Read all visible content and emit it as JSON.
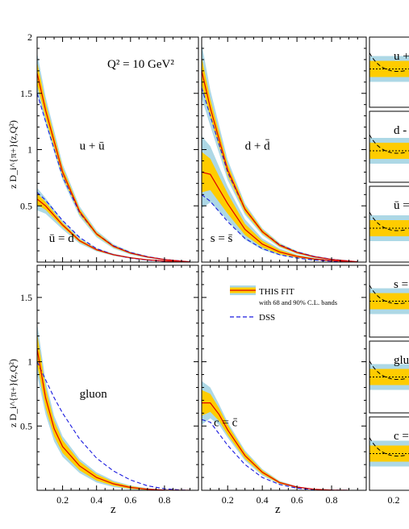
{
  "figure": {
    "annotation": "Q² = 10 GeV²",
    "ylabel_top": "z D_i^{π+}(z,Q²)",
    "ylabel_bottom": "z D_i^{π+}(z,Q²)",
    "xlabel": "z",
    "legend": {
      "fit_label": "THIS FIT",
      "fit_sub": "with 68 and 90% C.L. bands",
      "dss_label": "DSS"
    }
  },
  "colors": {
    "band90": "#add8e6",
    "band68": "#ffcc00",
    "fit": "#dd0000",
    "dss": "#1a1adf",
    "ratio_ref": "#000000"
  },
  "chart_data": [
    {
      "type": "line",
      "panel": "top-left",
      "xlim": [
        0.05,
        1.0
      ],
      "ylim": [
        0,
        2.0
      ],
      "xticks": [],
      "yticks": [
        0.5,
        1,
        1.5,
        2
      ],
      "ytick_labels": [
        "0.5",
        "1",
        "1.5",
        "2"
      ],
      "series": [
        {
          "name": "u + ū",
          "label_x": 0.3,
          "label_y": 1.0,
          "x": [
            0.05,
            0.1,
            0.2,
            0.3,
            0.4,
            0.5,
            0.6,
            0.7,
            0.8,
            0.9,
            0.95
          ],
          "fit": [
            1.68,
            1.35,
            0.8,
            0.45,
            0.25,
            0.14,
            0.08,
            0.045,
            0.022,
            0.008,
            0.003
          ],
          "b68": [
            0.1,
            0.07,
            0.04,
            0.025,
            0.015,
            0.01,
            0.007,
            0.005,
            0.003,
            0.002,
            0.001
          ],
          "b90": [
            0.18,
            0.12,
            0.07,
            0.045,
            0.03,
            0.02,
            0.013,
            0.009,
            0.006,
            0.003,
            0.002
          ],
          "dss": [
            1.5,
            1.25,
            0.76,
            0.44,
            0.25,
            0.145,
            0.085,
            0.048,
            0.024,
            0.009,
            0.003
          ]
        },
        {
          "name": "ū = d",
          "label_x": 0.12,
          "label_y": 0.18,
          "x": [
            0.05,
            0.1,
            0.2,
            0.3,
            0.4,
            0.5,
            0.6,
            0.7,
            0.8,
            0.9,
            0.95
          ],
          "fit": [
            0.56,
            0.5,
            0.33,
            0.19,
            0.11,
            0.065,
            0.038,
            0.02,
            0.01,
            0.004,
            0.001
          ],
          "b68": [
            0.05,
            0.035,
            0.02,
            0.013,
            0.008,
            0.005,
            0.004,
            0.003,
            0.002,
            0.001,
            0.001
          ],
          "b90": [
            0.1,
            0.07,
            0.04,
            0.025,
            0.015,
            0.01,
            0.007,
            0.005,
            0.003,
            0.002,
            0.001
          ],
          "dss": [
            0.62,
            0.55,
            0.37,
            0.22,
            0.12,
            0.065,
            0.036,
            0.018,
            0.008,
            0.003,
            0.001
          ]
        }
      ]
    },
    {
      "type": "line",
      "panel": "top-middle",
      "xlim": [
        0.05,
        1.0
      ],
      "ylim": [
        0,
        2.0
      ],
      "xticks": [],
      "yticks": [],
      "series": [
        {
          "name": "d + d̄",
          "label_x": 0.3,
          "label_y": 1.0,
          "x": [
            0.05,
            0.1,
            0.2,
            0.3,
            0.4,
            0.5,
            0.6,
            0.7,
            0.8,
            0.9,
            0.95
          ],
          "fit": [
            1.7,
            1.37,
            0.82,
            0.47,
            0.27,
            0.15,
            0.085,
            0.047,
            0.024,
            0.009,
            0.003
          ],
          "b68": [
            0.12,
            0.08,
            0.05,
            0.03,
            0.018,
            0.012,
            0.008,
            0.005,
            0.003,
            0.002,
            0.001
          ],
          "b90": [
            0.24,
            0.16,
            0.09,
            0.05,
            0.03,
            0.02,
            0.013,
            0.009,
            0.006,
            0.003,
            0.002
          ],
          "dss": [
            1.55,
            1.3,
            0.8,
            0.47,
            0.27,
            0.155,
            0.09,
            0.05,
            0.025,
            0.009,
            0.003
          ]
        },
        {
          "name": "s = s̄",
          "label_x": 0.1,
          "label_y": 0.18,
          "x": [
            0.05,
            0.1,
            0.2,
            0.3,
            0.4,
            0.5,
            0.6,
            0.7,
            0.8,
            0.9,
            0.95
          ],
          "fit": [
            0.8,
            0.78,
            0.52,
            0.29,
            0.16,
            0.09,
            0.05,
            0.027,
            0.013,
            0.005,
            0.002
          ],
          "b68": [
            0.18,
            0.14,
            0.09,
            0.05,
            0.03,
            0.018,
            0.01,
            0.006,
            0.004,
            0.002,
            0.001
          ],
          "b90": [
            0.32,
            0.25,
            0.15,
            0.09,
            0.05,
            0.03,
            0.017,
            0.01,
            0.006,
            0.003,
            0.001
          ],
          "dss": [
            0.6,
            0.54,
            0.36,
            0.21,
            0.12,
            0.065,
            0.036,
            0.018,
            0.008,
            0.003,
            0.001
          ]
        }
      ]
    },
    {
      "type": "line",
      "panel": "bottom-left",
      "xlim": [
        0.05,
        1.0
      ],
      "ylim": [
        0,
        1.75
      ],
      "xticks": [
        0.2,
        0.4,
        0.6,
        0.8
      ],
      "xtick_labels": [
        "0.2",
        "0.4",
        "0.6",
        "0.8"
      ],
      "yticks": [
        0.5,
        1,
        1.5
      ],
      "ytick_labels": [
        "0.5",
        "1",
        "1.5"
      ],
      "series": [
        {
          "name": "gluon",
          "label_x": 0.3,
          "label_y": 0.72,
          "x": [
            0.05,
            0.1,
            0.15,
            0.2,
            0.3,
            0.4,
            0.5,
            0.6,
            0.7,
            0.8,
            0.9,
            0.95
          ],
          "fit": [
            1.1,
            0.72,
            0.48,
            0.34,
            0.19,
            0.1,
            0.05,
            0.022,
            0.008,
            0.002,
            0.0,
            0.0
          ],
          "b68": [
            0.12,
            0.08,
            0.06,
            0.05,
            0.035,
            0.025,
            0.015,
            0.01,
            0.005,
            0.002,
            0.001,
            0.0
          ],
          "b90": [
            0.2,
            0.13,
            0.1,
            0.08,
            0.055,
            0.04,
            0.025,
            0.015,
            0.008,
            0.003,
            0.001,
            0.0
          ],
          "dss": [
            1.0,
            0.86,
            0.72,
            0.6,
            0.4,
            0.25,
            0.15,
            0.08,
            0.035,
            0.012,
            0.002,
            0.0
          ]
        }
      ]
    },
    {
      "type": "line",
      "panel": "bottom-middle",
      "xlim": [
        0.05,
        1.0
      ],
      "ylim": [
        0,
        1.75
      ],
      "xticks": [
        0.2,
        0.4,
        0.6,
        0.8
      ],
      "xtick_labels": [
        "0.2",
        "0.4",
        "0.6",
        "0.8"
      ],
      "yticks": [],
      "series": [
        {
          "name": "c = c̄",
          "label_x": 0.12,
          "label_y": 0.5,
          "x": [
            0.05,
            0.1,
            0.15,
            0.2,
            0.3,
            0.4,
            0.5,
            0.6,
            0.7,
            0.8,
            0.9
          ],
          "fit": [
            0.68,
            0.68,
            0.59,
            0.47,
            0.27,
            0.14,
            0.06,
            0.025,
            0.008,
            0.002,
            0.0
          ],
          "b68": [
            0.1,
            0.07,
            0.05,
            0.04,
            0.025,
            0.015,
            0.008,
            0.004,
            0.002,
            0.001,
            0.0
          ],
          "b90": [
            0.17,
            0.12,
            0.08,
            0.06,
            0.04,
            0.025,
            0.013,
            0.006,
            0.003,
            0.001,
            0.0
          ],
          "dss": [
            0.55,
            0.53,
            0.44,
            0.35,
            0.2,
            0.1,
            0.045,
            0.016,
            0.005,
            0.001,
            0.0
          ]
        }
      ]
    }
  ],
  "ratio_panels": {
    "labels": [
      "u +",
      "d -",
      "ū =",
      "s =",
      "glu",
      "c ="
    ],
    "xtick_label": "0.2"
  }
}
